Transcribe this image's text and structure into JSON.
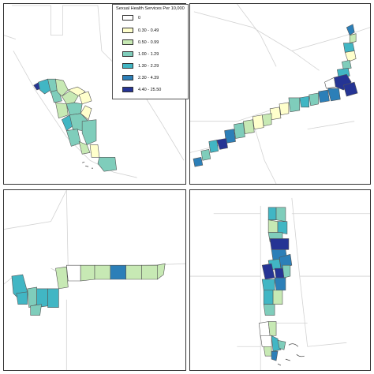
{
  "legend": {
    "title": "Sexual Health Services Per 10,000",
    "items": [
      {
        "label": "0",
        "color": "#ffffff"
      },
      {
        "label": "0.30 - 0.49",
        "color": "#ffffcc"
      },
      {
        "label": "0.50 - 0.99",
        "color": "#c7e9b4"
      },
      {
        "label": "1.00 - 1.29",
        "color": "#7fcdbb"
      },
      {
        "label": "1.30 - 2.29",
        "color": "#41b6c4"
      },
      {
        "label": "2.30 - 4.39",
        "color": "#2c7fb8"
      },
      {
        "label": "4.40 - 25.50",
        "color": "#253494"
      }
    ]
  }
}
